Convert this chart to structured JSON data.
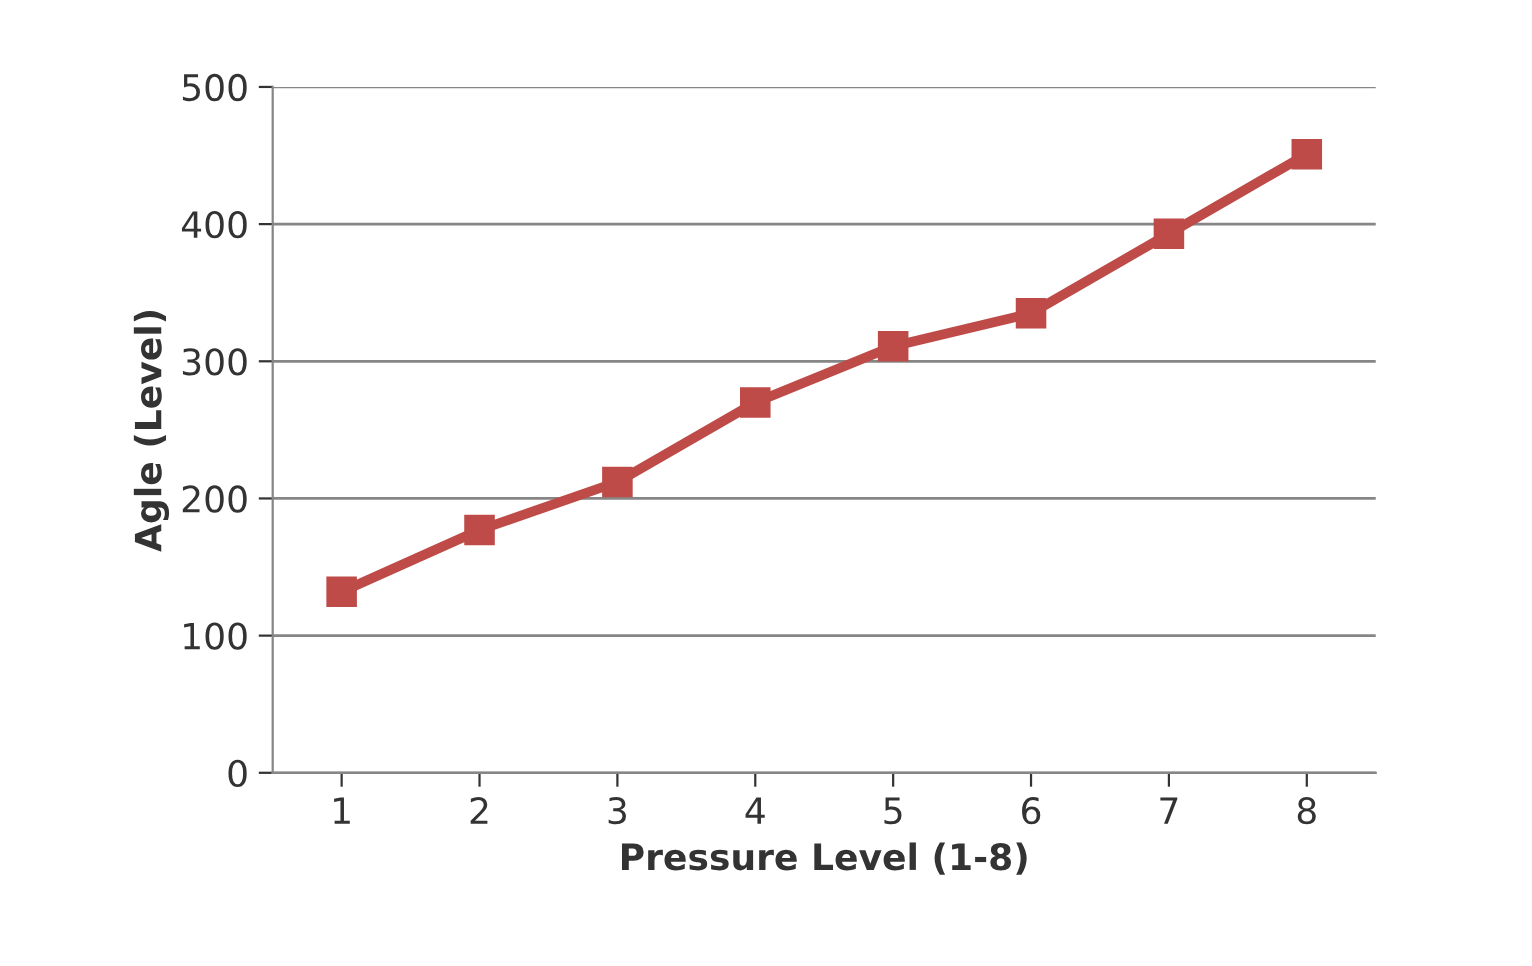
{
  "chart_data": {
    "type": "line",
    "xlabel": "Pressure Level (1-8)",
    "ylabel": "Agle (Level)",
    "categories": [
      "1",
      "2",
      "3",
      "4",
      "5",
      "6",
      "7",
      "8"
    ],
    "series": [
      {
        "color": "#be4b48",
        "values": [
          132,
          177,
          212,
          270,
          311,
          335,
          393,
          451
        ]
      }
    ],
    "ylim": [
      0,
      500
    ],
    "yticks": [
      0,
      100,
      200,
      300,
      400,
      500
    ],
    "grid": "y",
    "marker": "square",
    "line_style": "solid",
    "legend": false
  }
}
